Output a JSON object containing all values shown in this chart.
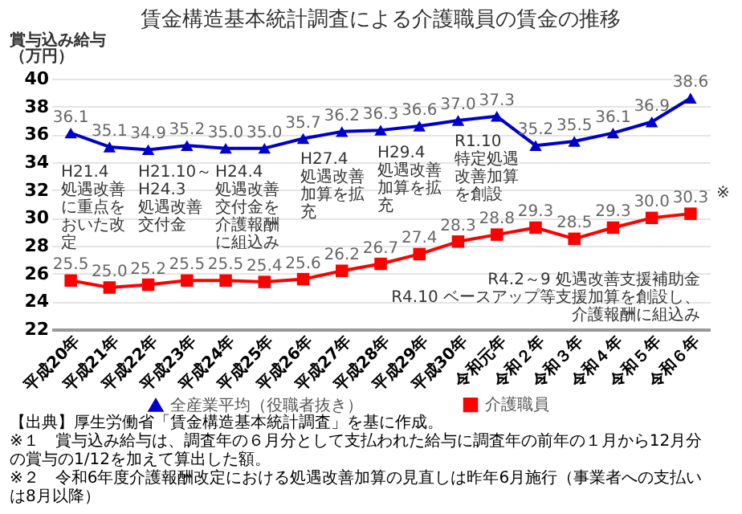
{
  "chart_data": {
    "type": "line",
    "title": "賃金構造基本統計調査による介護職員の賃金の推移",
    "ylabel": "賞与込み給与（万円）",
    "categories": [
      "平成20年",
      "平成21年",
      "平成22年",
      "平成23年",
      "平成24年",
      "平成25年",
      "平成26年",
      "平成27年",
      "平成28年",
      "平成29年",
      "平成30年",
      "令和元年",
      "令和２年",
      "令和３年",
      "令和４年",
      "令和５年",
      "令和６年"
    ],
    "series": [
      {
        "name": "全産業平均（役職者抜き）",
        "color": "#0000cc",
        "marker": "triangle",
        "values": [
          36.1,
          35.1,
          34.9,
          35.2,
          35.0,
          35.0,
          35.7,
          36.2,
          36.3,
          36.6,
          37.0,
          37.3,
          35.2,
          35.5,
          36.1,
          36.9,
          38.6
        ],
        "value_labels": [
          "36.1",
          "35.1",
          "34.9",
          "35.2",
          "35.0",
          "35.0",
          "35.7",
          "36.2",
          "36.3",
          "36.6",
          "37.0",
          "37.3",
          "35.2",
          "35.5",
          "36.1",
          "36.9",
          "38.6"
        ]
      },
      {
        "name": "介護職員",
        "color": "#ff0000",
        "marker": "square",
        "values": [
          25.5,
          25.0,
          25.2,
          25.5,
          25.5,
          25.4,
          25.6,
          26.2,
          26.7,
          27.4,
          28.3,
          28.8,
          29.3,
          28.5,
          29.3,
          30.0,
          30.3
        ],
        "value_labels": [
          "25.5",
          "25.0",
          "25.2",
          "25.5",
          "25.5",
          "25.4",
          "25.6",
          "26.2",
          "26.7",
          "27.4",
          "28.3",
          "28.8",
          "29.3",
          "28.5",
          "29.3",
          "30.0",
          "30.3"
        ]
      }
    ],
    "ylim": [
      22,
      40
    ],
    "yticks": [
      22,
      24,
      26,
      28,
      30,
      32,
      34,
      36,
      38,
      40
    ],
    "grid": "y",
    "legend": "bottom",
    "annotations": [
      "H21.4\n処遇改善に重点をおいた改定",
      "H21.10～\nH24.3\n処遇改善交付金",
      "H24.4\n処遇改善交付金を介護報酬に組込み",
      "H27.4\n処遇改善加算を拡充",
      "H29.4\n処遇改善加算を拡充",
      "R1.10\n特定処遇改善加算を創設",
      "R4.2～9 処遇改善支援補助金\nR4.10 ベースアップ等支援加算を創設し、介護報酬に組込み",
      {
        "text": "※",
        "x": "令和６年",
        "y": 30.3
      },
      "【出典】厚生労働省「賃金構造基本統計調査」を基に作成。",
      "※１　賞与込み給与は、調査年の６月分として支払われた給与に調査年の前年の１月から12月分の賞与の1/12を加えて算出した額。",
      "※２　令和6年度介護報酬改定における処遇改善加算の見直しは昨年6月施行（事業者への支払いは8月以降）"
    ]
  }
}
